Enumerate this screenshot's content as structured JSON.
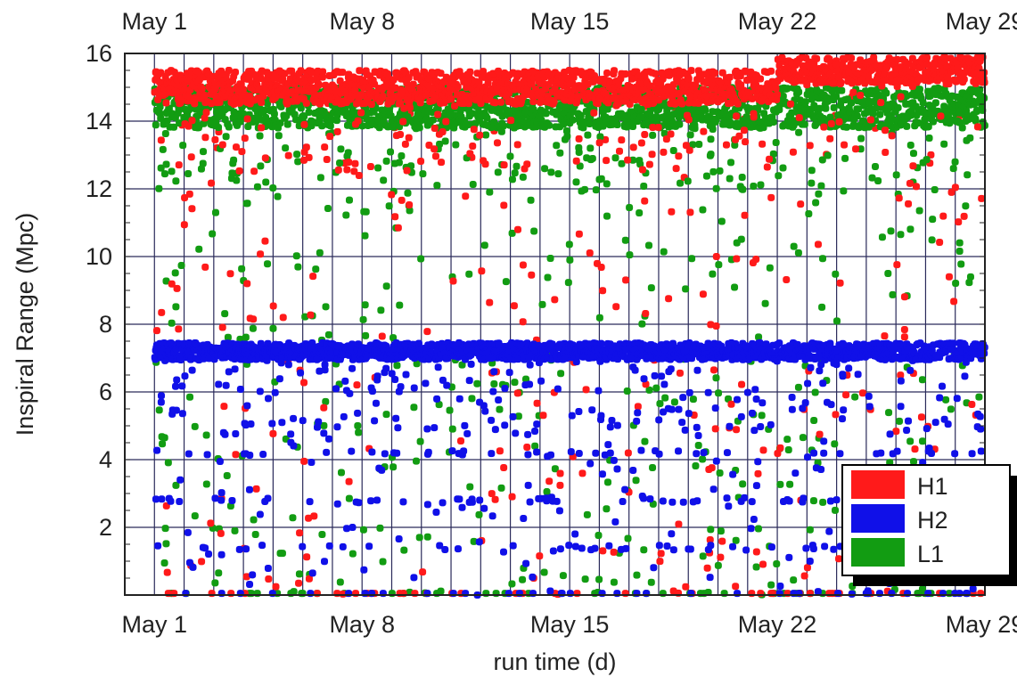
{
  "chart_data": {
    "type": "scatter",
    "xlabel": "run time (d)",
    "ylabel": "Inspiral Range (Mpc)",
    "x_ticks": [
      {
        "value": "2005-05-01",
        "label": "May 1"
      },
      {
        "value": "2005-05-08",
        "label": "May 8"
      },
      {
        "value": "2005-05-15",
        "label": "May 15"
      },
      {
        "value": "2005-05-22",
        "label": "May 22"
      },
      {
        "value": "2005-05-29",
        "label": "May 29"
      }
    ],
    "x_range": [
      "2005-04-30",
      "2005-05-29"
    ],
    "ylim": [
      0,
      16
    ],
    "y_ticks": [
      2,
      4,
      6,
      8,
      10,
      12,
      14,
      16
    ],
    "grid": true,
    "legend_position": "bottom-right",
    "series": [
      {
        "name": "H1",
        "color": "#ff1a1a",
        "bands": [
          {
            "from": "2005-05-01",
            "to": "2005-05-22",
            "y_center": 15.0,
            "spread": 0.5
          },
          {
            "from": "2005-05-22",
            "to": "2005-05-29",
            "y_center": 15.5,
            "spread": 0.4
          }
        ],
        "scatter_range": [
          0,
          15
        ],
        "scatter_count": 260
      },
      {
        "name": "H2",
        "color": "#1010e8",
        "bands": [
          {
            "from": "2005-05-01",
            "to": "2005-05-29",
            "y_center": 7.2,
            "spread": 0.25
          }
        ],
        "scatter_range": [
          0,
          7
        ],
        "low_levels": [
          1.4,
          2.8,
          4.2
        ],
        "scatter_count": 320
      },
      {
        "name": "L1",
        "color": "#129c12",
        "bands": [
          {
            "from": "2005-05-01",
            "to": "2005-05-29",
            "y_center": 14.4,
            "spread": 0.6
          }
        ],
        "scatter_range": [
          0,
          14.5
        ],
        "scatter_count": 420
      }
    ]
  }
}
